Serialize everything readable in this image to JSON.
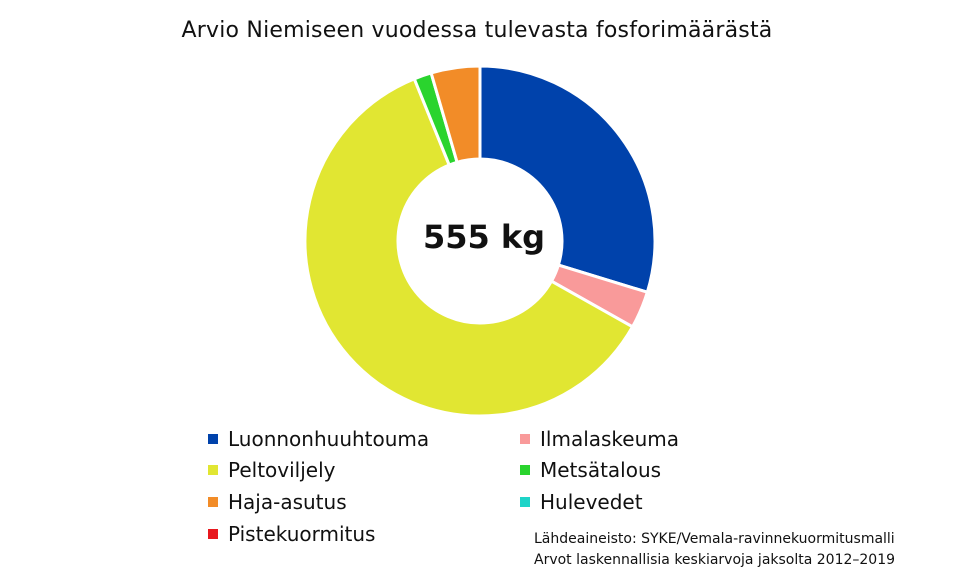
{
  "chart_data": {
    "type": "pie",
    "style": "donut",
    "title": "Arvio Niemiseen vuodessa tulevasta fosforimäärästä",
    "center_label": "555 kg",
    "legend_position": "bottom",
    "series": [
      {
        "name": "Luonnonhuuhtouma",
        "value": 165,
        "color": "#0042AB"
      },
      {
        "name": "Ilmalaskeuma",
        "value": 19,
        "color": "#F99A9A"
      },
      {
        "name": "Peltoviljely",
        "value": 337,
        "color": "#E1E632"
      },
      {
        "name": "Metsätalous",
        "value": 9,
        "color": "#2AD42E"
      },
      {
        "name": "Haja-asutus",
        "value": 25,
        "color": "#F28C28"
      },
      {
        "name": "Hulevedet",
        "value": 0,
        "color": "#1ED4C8"
      },
      {
        "name": "Pistekuormitus",
        "value": 0,
        "color": "#E8181E"
      }
    ]
  },
  "source_lines": [
    "Lähdeaineisto: SYKE/Vemala-ravinnekuormitusmalli",
    "Arvot laskennallisia keskiarvoja jaksolta 2012–2019"
  ]
}
